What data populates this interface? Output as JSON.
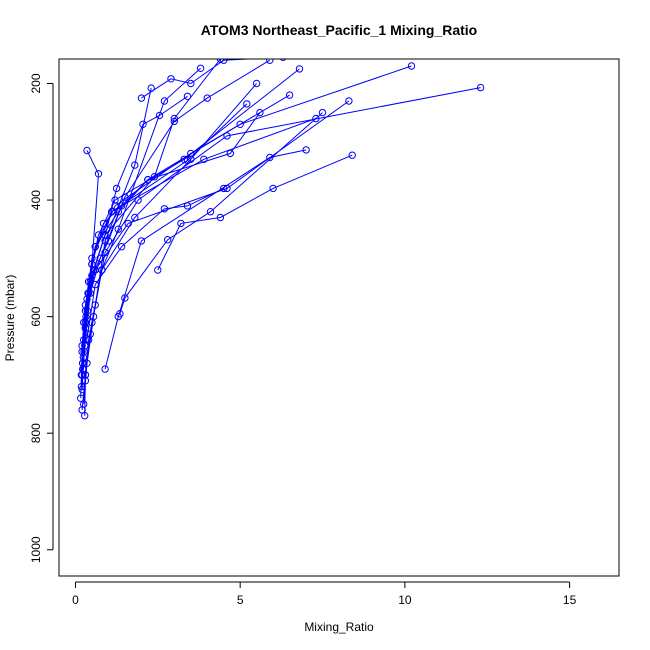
{
  "chart_data": {
    "type": "line",
    "title": "ATOM3 Northeast_Pacific_1 Mixing_Ratio",
    "xlabel": "Mixing_Ratio",
    "ylabel": "Pressure (mbar)",
    "xlim": [
      -0.5,
      16.5
    ],
    "ylim": [
      1045,
      158
    ],
    "y_inverted": true,
    "xticks": [
      0,
      5,
      10,
      15
    ],
    "yticks": [
      200,
      400,
      600,
      800,
      1000
    ],
    "grid": false,
    "legend": "none",
    "series_color": "#0000ff",
    "marker": "open-circle",
    "series": [
      {
        "x": [
          0.18,
          0.22,
          0.3,
          0.45,
          0.9,
          2.4,
          3.0,
          4.4
        ],
        "y": [
          720,
          680,
          610,
          540,
          460,
          360,
          260,
          158
        ]
      },
      {
        "x": [
          0.2,
          0.25,
          0.35,
          0.5,
          1.2,
          3.5,
          6.5
        ],
        "y": [
          700,
          640,
          570,
          500,
          410,
          320,
          220
        ]
      },
      {
        "x": [
          0.22,
          0.3,
          0.4,
          0.6,
          1.3,
          2.2,
          5.0,
          10.2
        ],
        "y": [
          690,
          620,
          560,
          480,
          420,
          365,
          270,
          170
        ]
      },
      {
        "x": [
          0.16,
          0.2,
          0.3,
          0.6,
          1.6,
          4.6,
          8.3
        ],
        "y": [
          740,
          660,
          590,
          520,
          440,
          380,
          230
        ]
      },
      {
        "x": [
          0.25,
          0.35,
          0.5,
          0.8,
          1.8,
          3.5,
          5.5
        ],
        "y": [
          750,
          680,
          610,
          520,
          430,
          330,
          200
        ]
      },
      {
        "x": [
          0.2,
          0.28,
          0.45,
          0.75,
          1.4,
          3.9,
          7.3
        ],
        "y": [
          725,
          650,
          560,
          500,
          410,
          330,
          260
        ]
      },
      {
        "x": [
          0.3,
          0.4,
          0.6,
          0.9,
          1.9,
          4.6,
          12.3
        ],
        "y": [
          710,
          640,
          580,
          490,
          400,
          290,
          207
        ]
      },
      {
        "x": [
          0.18,
          0.25,
          0.4,
          0.7,
          1.2,
          3.3,
          6.8
        ],
        "y": [
          700,
          610,
          540,
          460,
          400,
          330,
          175
        ]
      },
      {
        "x": [
          0.22,
          0.32,
          0.5,
          1.0,
          1.5,
          3.0,
          4.0,
          5.9
        ],
        "y": [
          680,
          600,
          530,
          470,
          395,
          265,
          225,
          160
        ]
      },
      {
        "x": [
          0.26,
          0.36,
          0.55,
          0.95,
          1.25,
          2.05,
          2.55,
          3.4
        ],
        "y": [
          660,
          590,
          520,
          450,
          380,
          270,
          255,
          222
        ]
      },
      {
        "x": [
          0.2,
          0.3,
          0.45,
          0.8,
          1.3,
          2.7,
          3.8
        ],
        "y": [
          760,
          700,
          630,
          520,
          450,
          230,
          174
        ]
      },
      {
        "x": [
          0.24,
          0.3,
          0.5,
          0.7,
          0.35
        ],
        "y": [
          690,
          620,
          510,
          355,
          315
        ]
      },
      {
        "x": [
          0.28,
          0.3,
          0.55,
          0.9,
          1.8,
          2.3
        ],
        "y": [
          770,
          700,
          600,
          470,
          340,
          208
        ]
      },
      {
        "x": [
          0.24,
          0.38,
          0.6,
          1.1,
          3.4,
          5.2
        ],
        "y": [
          670,
          560,
          480,
          420,
          332,
          235
        ]
      },
      {
        "x": [
          0.2,
          0.3,
          0.5,
          0.85,
          2.2,
          4.7,
          5.6
        ],
        "y": [
          650,
          580,
          510,
          440,
          365,
          320,
          250
        ]
      },
      {
        "x": [
          1.35,
          1.5,
          2.8,
          4.1,
          7.5
        ],
        "y": [
          595,
          568,
          468,
          420,
          250
        ]
      },
      {
        "x": [
          2.5,
          3.2,
          4.4,
          6.0,
          8.4
        ],
        "y": [
          520,
          440,
          430,
          380,
          323
        ]
      },
      {
        "x": [
          0.35,
          0.6,
          1.4,
          2.7,
          3.4,
          4.5
        ],
        "y": [
          638,
          545,
          480,
          415,
          410,
          380
        ]
      },
      {
        "x": [
          0.9,
          1.3,
          2.0,
          5.9,
          7.0
        ],
        "y": [
          690,
          600,
          470,
          327,
          314
        ]
      },
      {
        "x": [
          2.0,
          2.9,
          3.5,
          4.5,
          6.3
        ],
        "y": [
          225,
          192,
          200,
          160,
          155
        ]
      }
    ]
  }
}
